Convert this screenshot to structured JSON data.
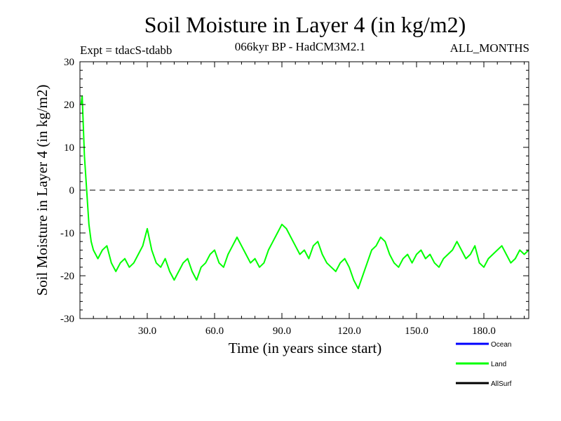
{
  "chart_data": {
    "type": "line",
    "title": "Soil Moisture in Layer 4 (in kg/m2)",
    "subtitle_left": "Expt = tdacS-tdabb",
    "subtitle_center": "066kyr BP - HadCM3M2.1",
    "subtitle_right": "ALL_MONTHS",
    "xlabel": "Time (in years since start)",
    "ylabel": "Soil Moisture in Layer 4 (in kg/m2)",
    "xlim": [
      0,
      200
    ],
    "ylim": [
      -30,
      30
    ],
    "xticks": [
      30,
      60,
      90,
      120,
      150,
      180
    ],
    "xtick_labels": [
      "30.0",
      "60.0",
      "90.0",
      "120.0",
      "150.0",
      "180.0"
    ],
    "yticks": [
      -30,
      -20,
      -10,
      0,
      10,
      20,
      30
    ],
    "ytick_labels": [
      "-30",
      "-20",
      "-10",
      "0",
      "10",
      "20",
      "30"
    ],
    "zero_line": true,
    "series": [
      {
        "name": "Ocean",
        "color": "#0000ff",
        "x": [],
        "values": []
      },
      {
        "name": "Land",
        "color": "#00ff00",
        "x": [
          0.5,
          1.0,
          1.5,
          2.0,
          2.5,
          3.0,
          3.5,
          4.0,
          5,
          6,
          8,
          10,
          12,
          14,
          16,
          18,
          20,
          22,
          24,
          26,
          28,
          30,
          32,
          34,
          36,
          38,
          40,
          42,
          44,
          46,
          48,
          50,
          52,
          54,
          56,
          58,
          60,
          62,
          64,
          66,
          68,
          70,
          72,
          74,
          76,
          78,
          80,
          82,
          84,
          86,
          88,
          90,
          92,
          94,
          96,
          98,
          100,
          102,
          104,
          106,
          108,
          110,
          112,
          114,
          116,
          118,
          120,
          122,
          124,
          126,
          128,
          130,
          132,
          134,
          136,
          138,
          140,
          142,
          144,
          146,
          148,
          150,
          152,
          154,
          156,
          158,
          160,
          162,
          164,
          166,
          168,
          170,
          172,
          174,
          176,
          178,
          180,
          182,
          184,
          186,
          188,
          190,
          192,
          194,
          196,
          198,
          200
        ],
        "values": [
          20,
          22,
          15,
          8,
          4,
          0,
          -4,
          -8,
          -12,
          -14,
          -16,
          -14,
          -13,
          -17,
          -19,
          -17,
          -16,
          -18,
          -17,
          -15,
          -13,
          -9,
          -14,
          -17,
          -18,
          -16,
          -19,
          -21,
          -19,
          -17,
          -16,
          -19,
          -21,
          -18,
          -17,
          -15,
          -14,
          -17,
          -18,
          -15,
          -13,
          -11,
          -13,
          -15,
          -17,
          -16,
          -18,
          -17,
          -14,
          -12,
          -10,
          -8,
          -9,
          -11,
          -13,
          -15,
          -14,
          -16,
          -13,
          -12,
          -15,
          -17,
          -18,
          -19,
          -17,
          -16,
          -18,
          -21,
          -23,
          -20,
          -17,
          -14,
          -13,
          -11,
          -12,
          -15,
          -17,
          -18,
          -16,
          -15,
          -17,
          -15,
          -14,
          -16,
          -15,
          -17,
          -18,
          -16,
          -15,
          -14,
          -12,
          -14,
          -16,
          -15,
          -13,
          -17,
          -18,
          -16,
          -15,
          -14,
          -13,
          -15,
          -17,
          -16,
          -14,
          -15,
          -14
        ]
      },
      {
        "name": "AllSurf",
        "color": "#000000",
        "x": [],
        "values": []
      }
    ],
    "legend_position": "bottom-right"
  }
}
